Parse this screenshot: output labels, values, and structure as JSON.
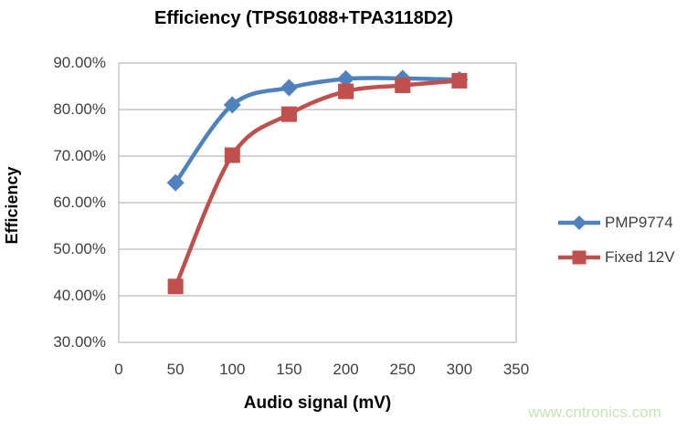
{
  "title": "Efficiency (TPS61088+TPA3118D2)",
  "watermark": "www.cntronics.com",
  "colors": {
    "series1": "#4F81BD",
    "series2": "#C0504D",
    "gridline": "#C6C6C6",
    "axis_text": "#3F3F3F",
    "watermark": "#C5E6B4",
    "background": "#FFFFFF"
  },
  "chart_data": {
    "type": "line",
    "title": "Efficiency (TPS61088+TPA3118D2)",
    "xlabel": "Audio signal (mV)",
    "ylabel": "Efficiency",
    "xlim": [
      0,
      350
    ],
    "ylim": [
      30,
      90
    ],
    "grid": "horizontal-only",
    "legend_position": "right",
    "line_style": "smoothed",
    "x_ticks": [
      {
        "v": 0,
        "label": "0"
      },
      {
        "v": 50,
        "label": "50"
      },
      {
        "v": 100,
        "label": "100"
      },
      {
        "v": 150,
        "label": "150"
      },
      {
        "v": 200,
        "label": "200"
      },
      {
        "v": 250,
        "label": "250"
      },
      {
        "v": 300,
        "label": "300"
      },
      {
        "v": 350,
        "label": "350"
      }
    ],
    "y_ticks": [
      {
        "v": 90,
        "label": "90.00%"
      },
      {
        "v": 80,
        "label": "80.00%"
      },
      {
        "v": 70,
        "label": "70.00%"
      },
      {
        "v": 60,
        "label": "60.00%"
      },
      {
        "v": 50,
        "label": "50.00%"
      },
      {
        "v": 40,
        "label": "40.00%"
      },
      {
        "v": 30,
        "label": "30.00%"
      }
    ],
    "x": [
      50,
      100,
      150,
      200,
      250,
      300
    ],
    "series": [
      {
        "name": "PMP9774",
        "color": "#4F81BD",
        "marker": "diamond",
        "values": [
          64.3,
          81.0,
          84.7,
          86.6,
          86.7,
          86.4
        ]
      },
      {
        "name": "Fixed 12V",
        "color": "#C0504D",
        "marker": "square",
        "values": [
          42.0,
          70.2,
          79.0,
          83.9,
          85.2,
          86.2
        ]
      }
    ]
  }
}
